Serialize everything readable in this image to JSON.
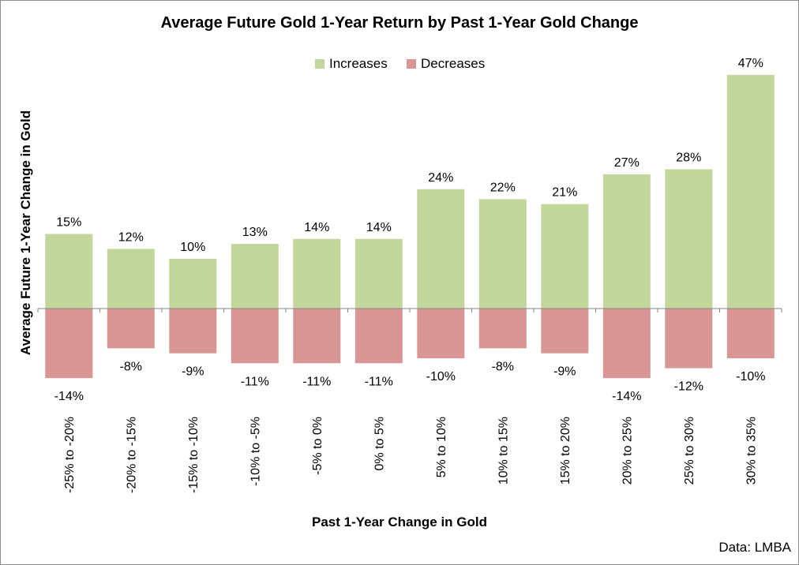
{
  "chart_data": {
    "type": "bar",
    "title": "Average Future Gold 1-Year Return by Past 1-Year Gold Change",
    "xlabel": "Past 1-Year Change in Gold",
    "ylabel": "Average Future 1-Year Change in  Gold",
    "categories": [
      "-25% to -20%",
      "-20% to -15%",
      "-15% to -10%",
      "-10% to -5%",
      "-5% to 0%",
      "0% to 5%",
      "5% to 10%",
      "10% to 15%",
      "15% to 20%",
      "20% to 25%",
      "25% to 30%",
      "30% to 35%"
    ],
    "series": [
      {
        "name": "Increases",
        "color": "#c3d69b",
        "values": [
          15,
          12,
          10,
          13,
          14,
          14,
          24,
          22,
          21,
          27,
          28,
          47
        ],
        "labels": [
          "15%",
          "12%",
          "10%",
          "13%",
          "14%",
          "14%",
          "24%",
          "22%",
          "21%",
          "27%",
          "28%",
          "47%"
        ]
      },
      {
        "name": "Decreases",
        "color": "#d99694",
        "values": [
          -14,
          -8,
          -9,
          -11,
          -11,
          -11,
          -10,
          -8,
          -9,
          -14,
          -12,
          -10
        ],
        "labels": [
          "-14%",
          "-8%",
          "-9%",
          "-11%",
          "-11%",
          "-11%",
          "-10%",
          "-8%",
          "-9%",
          "-14%",
          "-12%",
          "-10%"
        ]
      }
    ],
    "legend_position": "top-center",
    "grid": false,
    "ylim": [
      -15,
      47
    ]
  },
  "source": "Data: LMBA"
}
